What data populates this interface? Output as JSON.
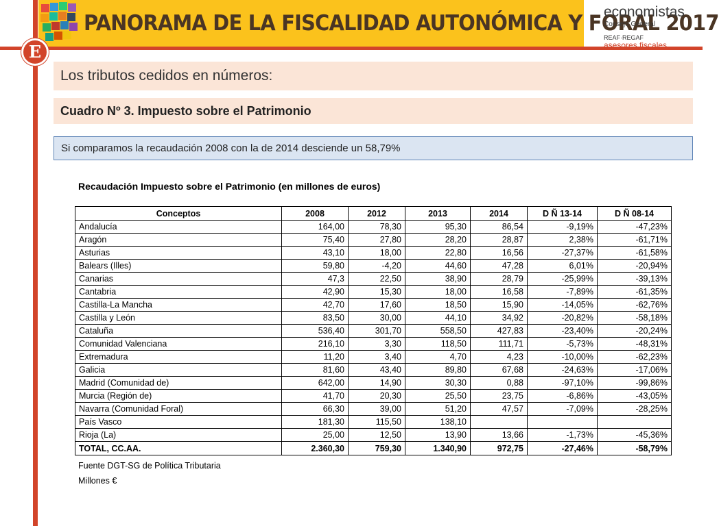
{
  "header": {
    "title": "PANORAMA DE LA FISCALIDAD AUTONÓMICA Y FORAL 2017",
    "logo_letter": "E"
  },
  "brand": {
    "name": "economistas",
    "sub": "Consejo General",
    "reaf": "REAF·REGAF",
    "asesores": "asesores fiscales"
  },
  "section_title": "Los tributos cedidos en números:",
  "subtitle": "Cuadro Nº 3. Impuesto sobre el Patrimonio",
  "highlight": "Si comparamos la recaudación 2008 con la de 2014 desciende un 58,79%",
  "table_title": "Recaudación Impuesto sobre el Patrimonio (en millones de euros)",
  "table": {
    "headers": [
      "Conceptos",
      "2008",
      "2012",
      "2013",
      "2014",
      "D Ñ 13-14",
      "D Ñ 08-14"
    ],
    "rows": [
      [
        "Andalucía",
        "164,00",
        "78,30",
        "95,30",
        "86,54",
        "-9,19%",
        "-47,23%"
      ],
      [
        "Aragón",
        "75,40",
        "27,80",
        "28,20",
        "28,87",
        "2,38%",
        "-61,71%"
      ],
      [
        "Asturias",
        "43,10",
        "18,00",
        "22,80",
        "16,56",
        "-27,37%",
        "-61,58%"
      ],
      [
        "Balears (Illes)",
        "59,80",
        "-4,20",
        "44,60",
        "47,28",
        "6,01%",
        "-20,94%"
      ],
      [
        "Canarias",
        "47,3",
        "22,50",
        "38,90",
        "28,79",
        "-25,99%",
        "-39,13%"
      ],
      [
        "Cantabria",
        "42,90",
        "15,30",
        "18,00",
        "16,58",
        "-7,89%",
        "-61,35%"
      ],
      [
        "Castilla-La Mancha",
        "42,70",
        "17,60",
        "18,50",
        "15,90",
        "-14,05%",
        "-62,76%"
      ],
      [
        "Castilla y León",
        "83,50",
        "30,00",
        "44,10",
        "34,92",
        "-20,82%",
        "-58,18%"
      ],
      [
        "Cataluña",
        "536,40",
        "301,70",
        "558,50",
        "427,83",
        "-23,40%",
        "-20,24%"
      ],
      [
        "Comunidad Valenciana",
        "216,10",
        "3,30",
        "118,50",
        "111,71",
        "-5,73%",
        "-48,31%"
      ],
      [
        "Extremadura",
        "11,20",
        "3,40",
        "4,70",
        "4,23",
        "-10,00%",
        "-62,23%"
      ],
      [
        "Galicia",
        "81,60",
        "43,40",
        "89,80",
        "67,68",
        "-24,63%",
        "-17,06%"
      ],
      [
        "Madrid (Comunidad de)",
        "642,00",
        "14,90",
        "30,30",
        "0,88",
        "-97,10%",
        "-99,86%"
      ],
      [
        "Murcia (Región de)",
        "41,70",
        "20,30",
        "25,50",
        "23,75",
        "-6,86%",
        "-43,05%"
      ],
      [
        "Navarra (Comunidad Foral)",
        "66,30",
        "39,00",
        "51,20",
        "47,57",
        "-7,09%",
        "-28,25%"
      ],
      [
        "País Vasco",
        "181,30",
        "115,50",
        "138,10",
        "",
        "",
        ""
      ],
      [
        "Rioja (La)",
        "25,00",
        "12,50",
        "13,90",
        "13,66",
        "-1,73%",
        "-45,36%"
      ]
    ],
    "total": [
      "TOTAL, CC.AA.",
      "2.360,30",
      "759,30",
      "1.340,90",
      "972,75",
      "-27,46%",
      "-58,79%"
    ]
  },
  "footnotes": {
    "source": "Fuente DGT-SG de Política Tributaria",
    "unit": "Millones €"
  },
  "colors": {
    "accent_red": "#d2442a",
    "header_yellow": "#fbc21c",
    "band_peach": "#fbe5d7",
    "info_blue": "#dbe5f2"
  }
}
